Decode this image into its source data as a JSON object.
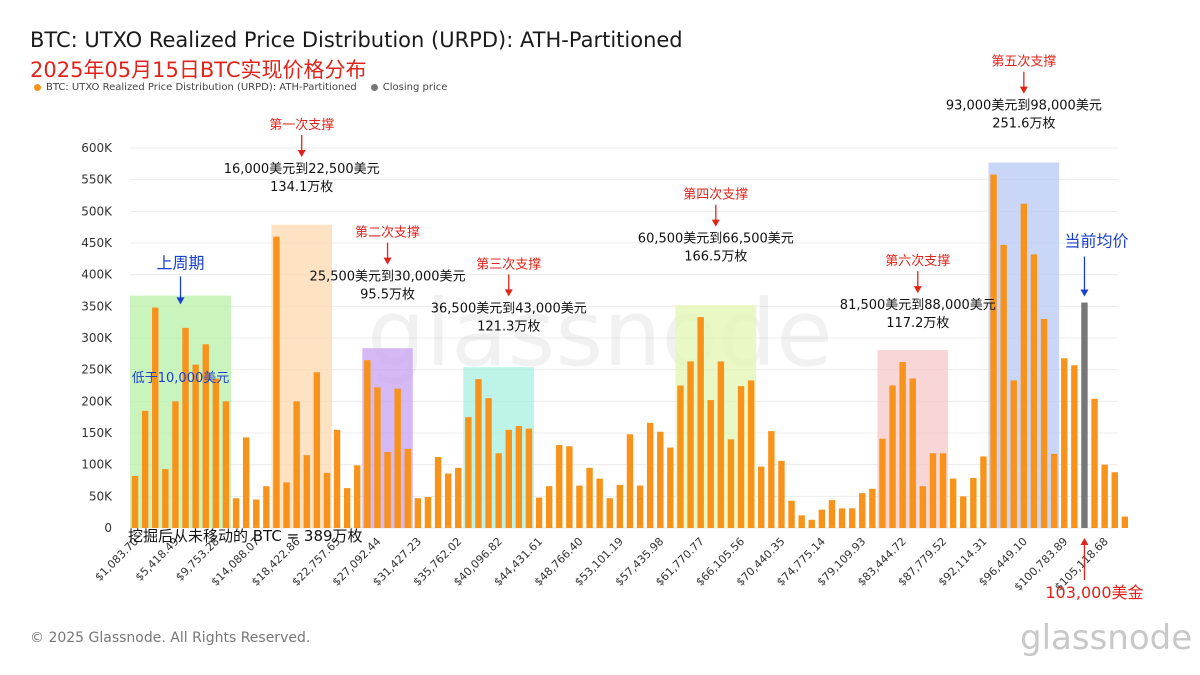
{
  "title": "BTC: UTXO Realized Price Distribution (URPD): ATH-Partitioned",
  "subtitle": "2025年05月15日BTC实现价格分布",
  "footer": "© 2025 Glassnode. All Rights Reserved.",
  "brand": "glassnode",
  "watermark": "glassnode",
  "colors": {
    "bar": "#f7931a",
    "closing": "#777777",
    "red": "#e0241b",
    "blue": "#1a3fd0"
  },
  "legend": [
    {
      "label": "BTC: UTXO Realized Price Distribution (URPD): ATH-Partitioned",
      "color": "#f7931a"
    },
    {
      "label": "Closing price",
      "color": "#777777"
    }
  ],
  "chart_data": {
    "type": "bar",
    "title": "BTC: UTXO Realized Price Distribution (URPD): ATH-Partitioned",
    "ylim": [
      0,
      600000
    ],
    "y_ticks": [
      0,
      50000,
      100000,
      150000,
      200000,
      250000,
      300000,
      350000,
      400000,
      450000,
      500000,
      550000,
      600000
    ],
    "y_tick_labels": [
      "0",
      "50K",
      "100K",
      "150K",
      "200K",
      "250K",
      "300K",
      "350K",
      "400K",
      "450K",
      "500K",
      "550K",
      "600K"
    ],
    "x_tick_labels": [
      {
        "index": 0,
        "label": "$1,083.70"
      },
      {
        "index": 4,
        "label": "$5,418.49"
      },
      {
        "index": 8,
        "label": "$9,753.28"
      },
      {
        "index": 12,
        "label": "$14,088.07"
      },
      {
        "index": 16,
        "label": "$18,422.86"
      },
      {
        "index": 20,
        "label": "$22,757.65"
      },
      {
        "index": 24,
        "label": "$27,092.44"
      },
      {
        "index": 28,
        "label": "$31,427.23"
      },
      {
        "index": 32,
        "label": "$35,762.02"
      },
      {
        "index": 36,
        "label": "$40,096.82"
      },
      {
        "index": 40,
        "label": "$44,431.61"
      },
      {
        "index": 44,
        "label": "$48,766.40"
      },
      {
        "index": 48,
        "label": "$53,101.19"
      },
      {
        "index": 52,
        "label": "$57,435.98"
      },
      {
        "index": 56,
        "label": "$61,770.77"
      },
      {
        "index": 60,
        "label": "$66,105.56"
      },
      {
        "index": 64,
        "label": "$70,440.35"
      },
      {
        "index": 68,
        "label": "$74,775.14"
      },
      {
        "index": 72,
        "label": "$79,109.93"
      },
      {
        "index": 76,
        "label": "$83,444.72"
      },
      {
        "index": 80,
        "label": "$87,779.52"
      },
      {
        "index": 84,
        "label": "$92,114.31"
      },
      {
        "index": 88,
        "label": "$96,449.10"
      },
      {
        "index": 92,
        "label": "$100,783.89"
      },
      {
        "index": 96,
        "label": "$105,118.68"
      }
    ],
    "values": [
      82000,
      185000,
      348000,
      93000,
      200000,
      316000,
      258000,
      290000,
      236000,
      200000,
      47000,
      143000,
      45000,
      66000,
      460000,
      72000,
      200000,
      115000,
      246000,
      87000,
      155000,
      63000,
      99000,
      265000,
      222000,
      120000,
      220000,
      125000,
      47000,
      49000,
      112000,
      86000,
      95000,
      175000,
      235000,
      205000,
      118000,
      155000,
      161000,
      157000,
      48000,
      66000,
      131000,
      129000,
      67000,
      95000,
      78000,
      47000,
      68000,
      148000,
      67000,
      166000,
      152000,
      127000,
      225000,
      263000,
      333000,
      202000,
      263000,
      140000,
      224000,
      233000,
      97000,
      153000,
      106000,
      43000,
      20000,
      13000,
      29000,
      44000,
      31000,
      31000,
      55000,
      62000,
      141000,
      225000,
      262000,
      236000,
      66000,
      118000,
      118000,
      78000,
      50000,
      79000,
      113000,
      558000,
      447000,
      233000,
      512000,
      432000,
      330000,
      117000,
      268000,
      257000,
      356000,
      204000,
      100000,
      88000,
      18000
    ],
    "closing_index": 94,
    "closing_value": 356000,
    "zones": [
      {
        "from": 0,
        "to": 9,
        "color": "#b8f0a8",
        "label": "低于10,000美元",
        "header": "上周期",
        "header_color": "#1a3fd0",
        "label_color": "#1a3fd0",
        "header_x": 4.5,
        "header_y": 410000,
        "label_y": 240000,
        "detail": "",
        "count": ""
      },
      {
        "from": 14,
        "to": 19,
        "color": "#fcd9b0",
        "header": "第一次支撑",
        "header_color": "#e0241b",
        "detail": "16,000美元到22,500美元",
        "count": "134.1万枚",
        "header_x": 16.5,
        "header_y": 630000
      },
      {
        "from": 23,
        "to": 27,
        "color": "#c7a2f0",
        "header": "第二次支撑",
        "header_color": "#e0241b",
        "detail": "25,500美元到30,000美元",
        "count": "95.5万枚",
        "header_x": 25,
        "header_y": 460000
      },
      {
        "from": 33,
        "to": 39,
        "color": "#a8f0e0",
        "header": "第三次支撑",
        "header_color": "#e0241b",
        "detail": "36,500美元到43,000美元",
        "count": "121.3万枚",
        "header_x": 37,
        "header_y": 410000
      },
      {
        "from": 54,
        "to": 61,
        "color": "#e2f5b0",
        "header": "第四次支撑",
        "header_color": "#e0241b",
        "detail": "60,500美元到66,500美元",
        "count": "166.5万枚",
        "header_x": 57.5,
        "header_y": 520000
      },
      {
        "from": 74,
        "to": 80,
        "color": "#f7c8c8",
        "header": "第六次支撑",
        "header_color": "#e0241b",
        "detail": "81,500美元到88,000美元",
        "count": "117.2万枚",
        "header_x": 77.5,
        "header_y": 415000
      },
      {
        "from": 85,
        "to": 91,
        "color": "#b8c8f5",
        "header": "第五次支撑",
        "header_color": "#e0241b",
        "detail": "93,000美元到98,000美元",
        "count": "251.6万枚",
        "header_x": 88,
        "header_y": 730000
      }
    ],
    "annotations": {
      "current": {
        "header": "当前均价",
        "color": "#1a3fd0"
      },
      "price": {
        "label": "103,000美金",
        "color": "#e0241b"
      },
      "unmoved": {
        "label": "挖掘后从未移动的 BTC = 389万枚",
        "color": "#111111"
      }
    }
  }
}
